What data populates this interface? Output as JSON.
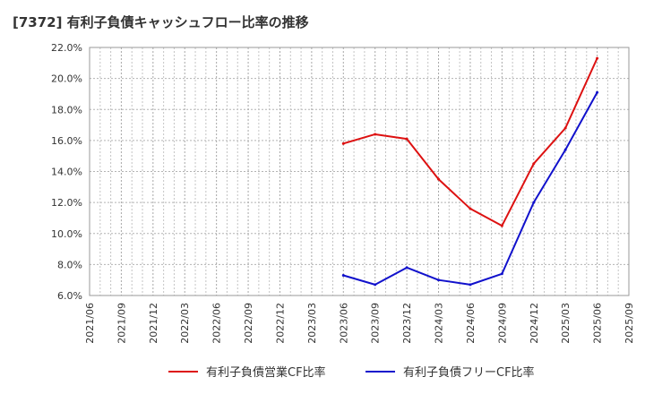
{
  "chart_data": {
    "type": "line",
    "title": "[7372]  有利子負債キャッシュフロー比率の推移",
    "xlabel": "",
    "ylabel": "",
    "ylim": [
      6.0,
      22.0
    ],
    "y_ticks": [
      "6.0%",
      "8.0%",
      "10.0%",
      "12.0%",
      "14.0%",
      "16.0%",
      "18.0%",
      "20.0%",
      "22.0%"
    ],
    "grid": true,
    "legend_position": "bottom",
    "categories": [
      "2021/06",
      "2021/09",
      "2021/12",
      "2022/03",
      "2022/06",
      "2022/09",
      "2022/12",
      "2023/03",
      "2023/06",
      "2023/09",
      "2023/12",
      "2024/03",
      "2024/06",
      "2024/09",
      "2024/12",
      "2025/03",
      "2025/06",
      "2025/09"
    ],
    "series": [
      {
        "name": "有利子負債営業CF比率",
        "color": "#dd1111",
        "values": [
          null,
          null,
          null,
          null,
          null,
          null,
          null,
          null,
          15.8,
          16.4,
          16.1,
          13.5,
          11.6,
          10.5,
          14.5,
          16.8,
          21.3,
          null
        ]
      },
      {
        "name": "有利子負債フリーCF比率",
        "color": "#1111cc",
        "values": [
          null,
          null,
          null,
          null,
          null,
          null,
          null,
          null,
          7.3,
          6.7,
          7.8,
          7.0,
          6.7,
          7.4,
          12.0,
          15.4,
          19.1,
          null
        ]
      }
    ]
  }
}
